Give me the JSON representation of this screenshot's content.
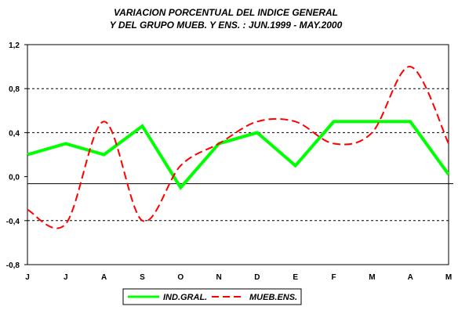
{
  "chart_data": {
    "type": "line",
    "title_lines": [
      "VARIACION PORCENTUAL DEL INDICE GENERAL",
      "Y DEL GRUPO MUEB. Y ENS. : JUN.1999 - MAY.2000"
    ],
    "xlabel": "",
    "ylabel": "",
    "categories": [
      "J",
      "J",
      "A",
      "S",
      "O",
      "N",
      "D",
      "E",
      "F",
      "M",
      "A",
      "M"
    ],
    "ylim": [
      -0.8,
      1.2
    ],
    "yticks": [
      -0.8,
      -0.4,
      0.0,
      0.4,
      0.8,
      1.2
    ],
    "ytick_labels": [
      "-0,8",
      "-0,4",
      "0,0",
      "0,4",
      "0,8",
      "1,2"
    ],
    "grid": "dashed horizontal at 0,4 steps",
    "legend_placement": "bottom",
    "series": [
      {
        "name": "IND.GRAL.",
        "color": "#00ff00",
        "style": "solid",
        "values": [
          0.2,
          0.3,
          0.2,
          0.46,
          -0.1,
          0.3,
          0.4,
          0.1,
          0.5,
          0.5,
          0.5,
          0.02
        ]
      },
      {
        "name": "MUEB.ENS.",
        "color": "#ff0000",
        "style": "dashed",
        "values": [
          -0.3,
          -0.43,
          0.5,
          -0.4,
          0.1,
          0.3,
          0.5,
          0.5,
          0.3,
          0.4,
          1.0,
          0.3
        ]
      }
    ]
  }
}
